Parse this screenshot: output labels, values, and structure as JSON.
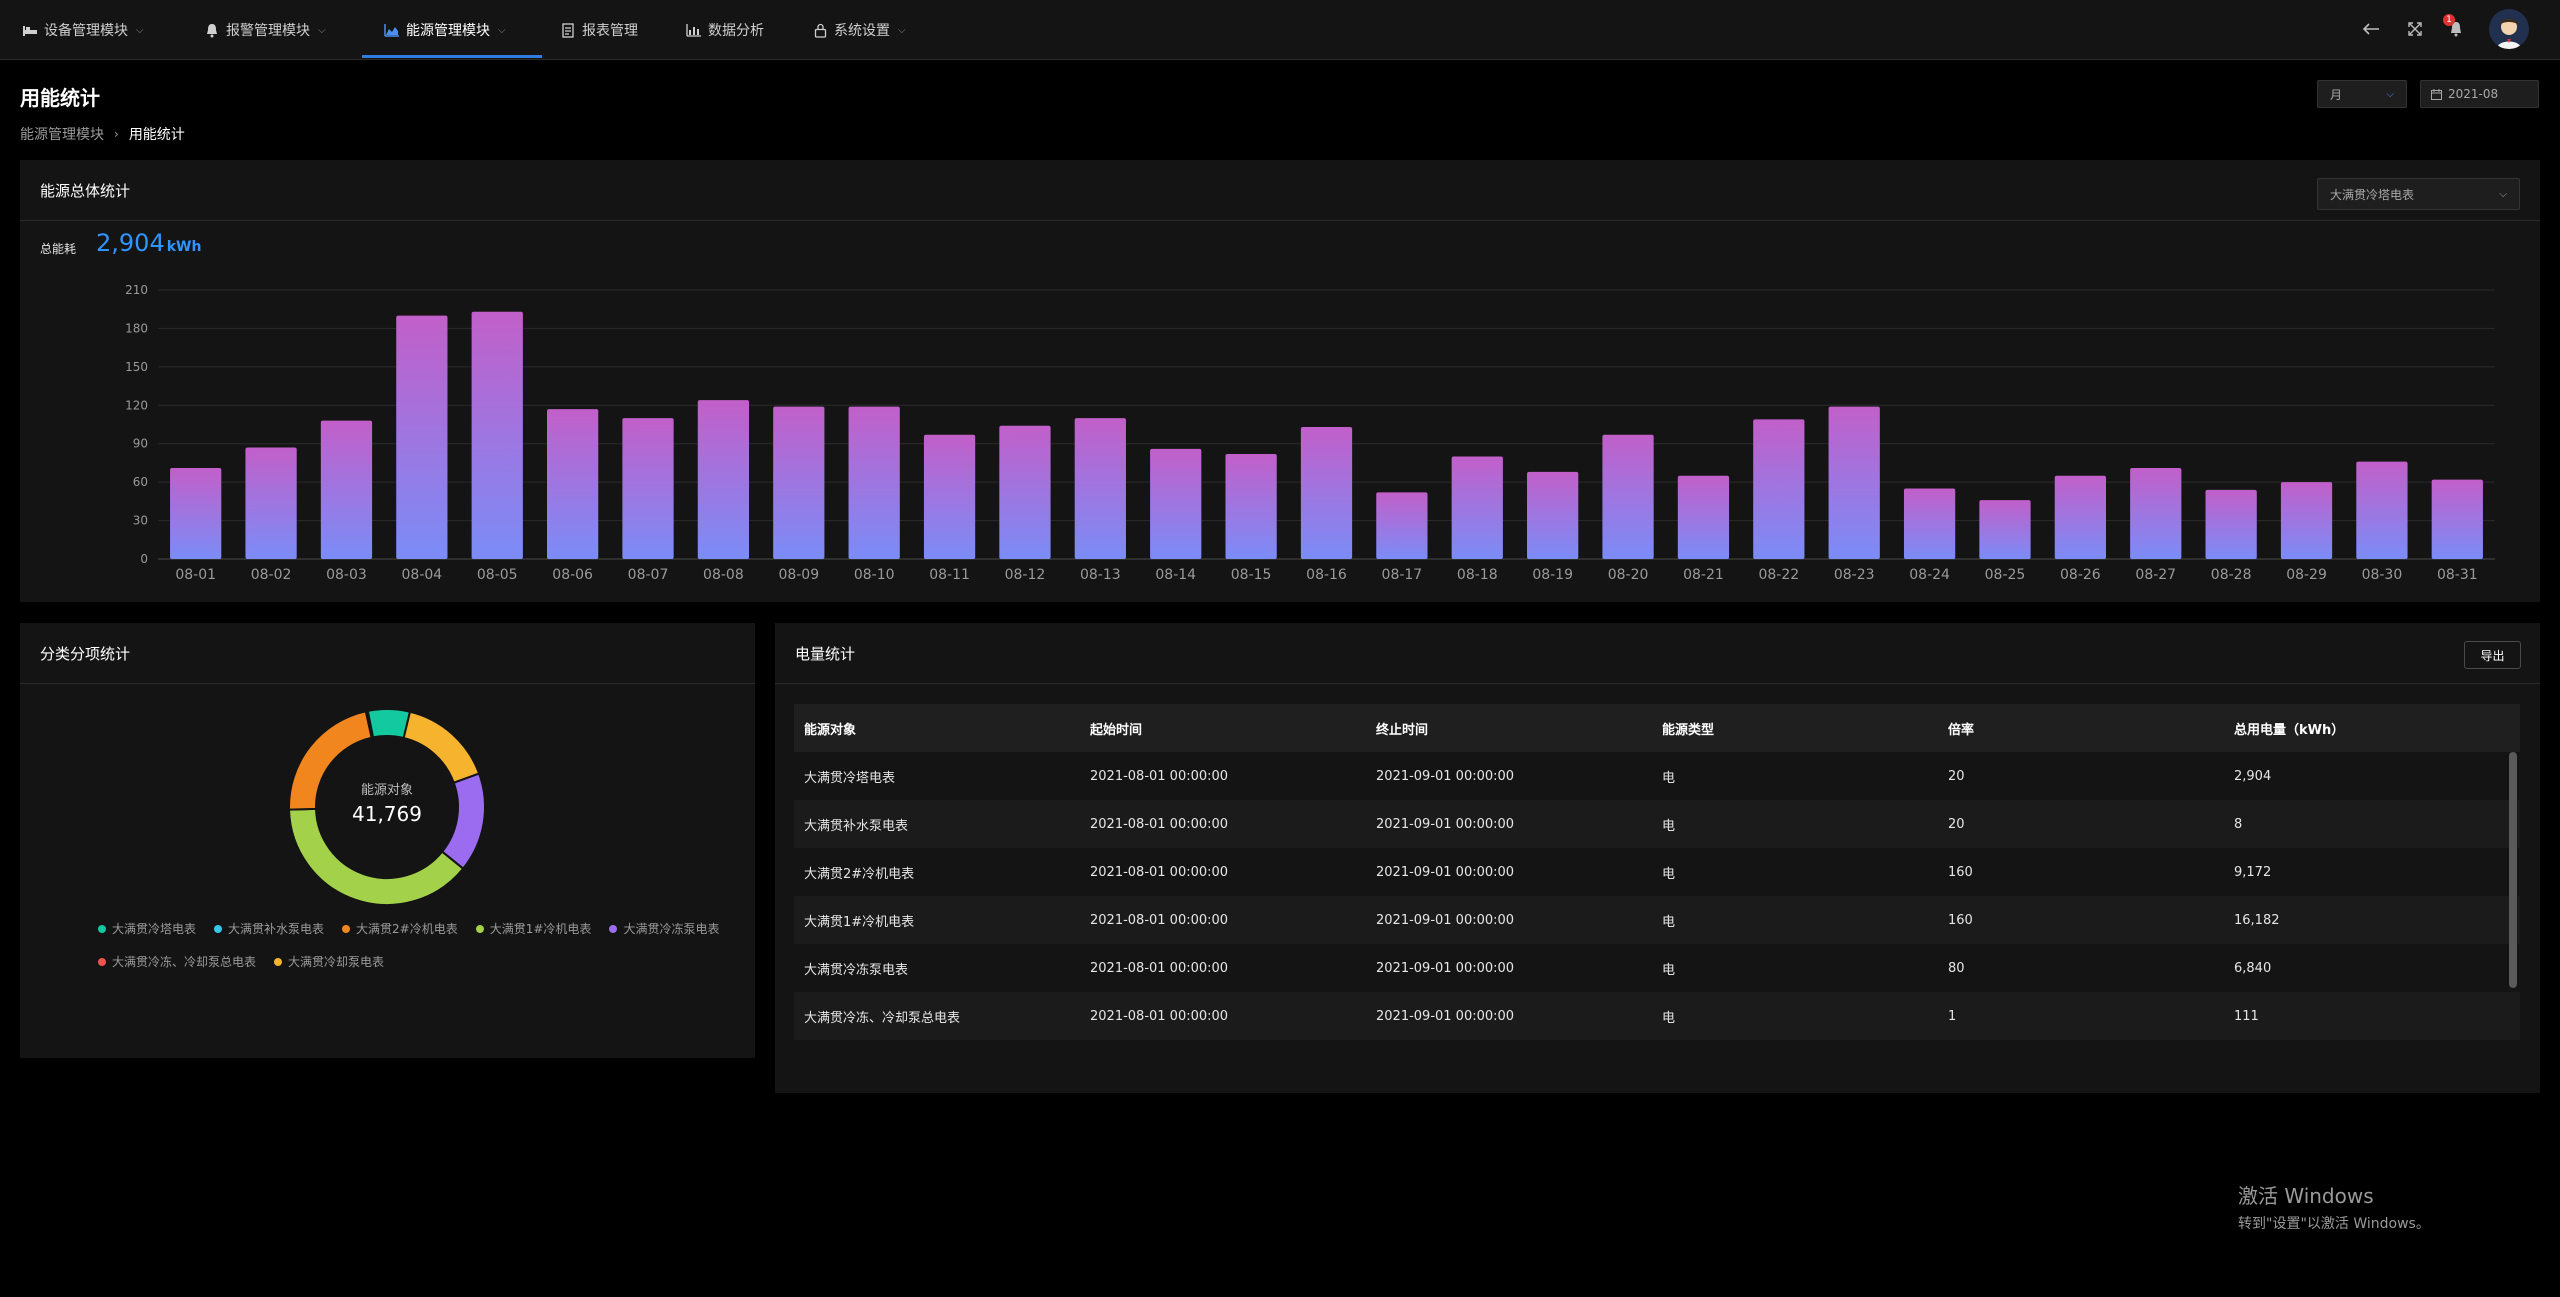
{
  "nav": {
    "items": [
      {
        "label": "设备管理模块",
        "icon": "bed-icon"
      },
      {
        "label": "报警管理模块",
        "icon": "bell-icon"
      },
      {
        "label": "能源管理模块",
        "icon": "area-chart-icon"
      },
      {
        "label": "报表管理",
        "icon": "report-icon"
      },
      {
        "label": "数据分析",
        "icon": "bar-chart-icon"
      },
      {
        "label": "系统设置",
        "icon": "lock-icon"
      }
    ],
    "active_index": 2,
    "notification_count": "1"
  },
  "page": {
    "title": "用能统计",
    "breadcrumb": [
      "能源管理模块",
      "用能统计"
    ],
    "period_select": "月",
    "date_value": "2021-08"
  },
  "overview": {
    "title": "能源总体统计",
    "meter_select": "大满贯冷塔电表",
    "total_label": "总能耗",
    "total_value": "2,904",
    "total_unit": "kWh"
  },
  "chart_data": {
    "type": "bar",
    "categories": [
      "08-01",
      "08-02",
      "08-03",
      "08-04",
      "08-05",
      "08-06",
      "08-07",
      "08-08",
      "08-09",
      "08-10",
      "08-11",
      "08-12",
      "08-13",
      "08-14",
      "08-15",
      "08-16",
      "08-17",
      "08-18",
      "08-19",
      "08-20",
      "08-21",
      "08-22",
      "08-23",
      "08-24",
      "08-25",
      "08-26",
      "08-27",
      "08-28",
      "08-29",
      "08-30",
      "08-31"
    ],
    "values": [
      71,
      87,
      108,
      190,
      193,
      117,
      110,
      124,
      119,
      119,
      97,
      104,
      110,
      86,
      82,
      103,
      52,
      80,
      68,
      97,
      65,
      109,
      119,
      55,
      46,
      65,
      71,
      54,
      60,
      76,
      62
    ],
    "ylim": [
      0,
      210
    ],
    "yticks": [
      "0",
      "30",
      "60",
      "90",
      "120",
      "150",
      "180",
      "210"
    ],
    "grid": true,
    "colors": {
      "top": "#c25fc9",
      "bottom": "#7b8cf7"
    }
  },
  "category": {
    "title": "分类分项统计",
    "center_label": "能源对象",
    "center_value": "41,769",
    "donut": {
      "type": "pie",
      "slices": [
        {
          "name": "大满贯冷塔电表",
          "value": 2904,
          "color": "#12c9a0"
        },
        {
          "name": "大满贯补水泵电表",
          "value": 8,
          "color": "#36c8e8"
        },
        {
          "name": "大满贯2#冷机电表",
          "value": 9172,
          "color": "#f0861d"
        },
        {
          "name": "大满贯1#冷机电表",
          "value": 16182,
          "color": "#a3d24a"
        },
        {
          "name": "大满贯冷冻泵电表",
          "value": 6840,
          "color": "#9b6cf0"
        },
        {
          "name": "大满贯冷冻、冷却泵总电表",
          "value": 111,
          "color": "#f0524f"
        },
        {
          "name": "大满贯冷却泵电表",
          "value": 6552,
          "color": "#f5b32e"
        }
      ]
    }
  },
  "electric": {
    "title": "电量统计",
    "export_label": "导出",
    "columns": [
      "能源对象",
      "起始时间",
      "终止时间",
      "能源类型",
      "倍率",
      "总用电量（kWh）"
    ],
    "rows": [
      [
        "大满贯冷塔电表",
        "2021-08-01 00:00:00",
        "2021-09-01 00:00:00",
        "电",
        "20",
        "2,904"
      ],
      [
        "大满贯补水泵电表",
        "2021-08-01 00:00:00",
        "2021-09-01 00:00:00",
        "电",
        "20",
        "8"
      ],
      [
        "大满贯2#冷机电表",
        "2021-08-01 00:00:00",
        "2021-09-01 00:00:00",
        "电",
        "160",
        "9,172"
      ],
      [
        "大满贯1#冷机电表",
        "2021-08-01 00:00:00",
        "2021-09-01 00:00:00",
        "电",
        "160",
        "16,182"
      ],
      [
        "大满贯冷冻泵电表",
        "2021-08-01 00:00:00",
        "2021-09-01 00:00:00",
        "电",
        "80",
        "6,840"
      ],
      [
        "大满贯冷冻、冷却泵总电表",
        "2021-08-01 00:00:00",
        "2021-09-01 00:00:00",
        "电",
        "1",
        "111"
      ]
    ]
  },
  "windows_watermark": {
    "line1": "激活 Windows",
    "line2": "转到\"设置\"以激活 Windows。"
  }
}
